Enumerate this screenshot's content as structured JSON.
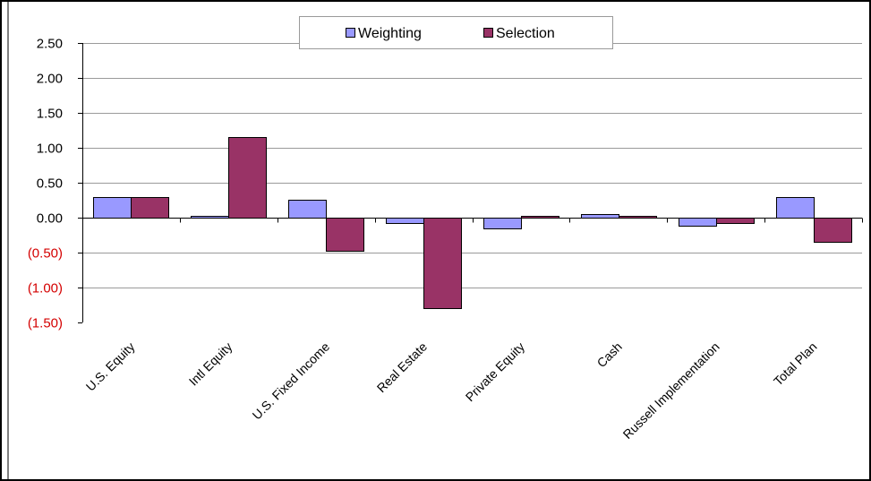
{
  "chart_data": {
    "type": "bar",
    "categories": [
      "U.S. Equity",
      "Intl Equity",
      "U.S. Fixed Income",
      "Real Estate",
      "Private Equity",
      "Cash",
      "Russell Implementation",
      "Total Plan"
    ],
    "series": [
      {
        "name": "Weighting",
        "color": "#9999ff",
        "values": [
          0.29,
          0.03,
          0.26,
          -0.08,
          -0.16,
          0.05,
          -0.11,
          0.3
        ]
      },
      {
        "name": "Selection",
        "color": "#993366",
        "values": [
          0.3,
          1.16,
          -0.48,
          -1.3,
          0.02,
          0.02,
          -0.08,
          -0.34
        ]
      }
    ],
    "yticks": [
      "2.50",
      "2.00",
      "1.50",
      "1.00",
      "0.50",
      "0.00",
      "(0.50)",
      "(1.00)",
      "(1.50)"
    ],
    "ylim": [
      -1.5,
      2.5
    ],
    "negative_tick_color": "#d40000",
    "grid": true,
    "legend_position": "top-center",
    "title": "",
    "xlabel": "",
    "ylabel": ""
  }
}
